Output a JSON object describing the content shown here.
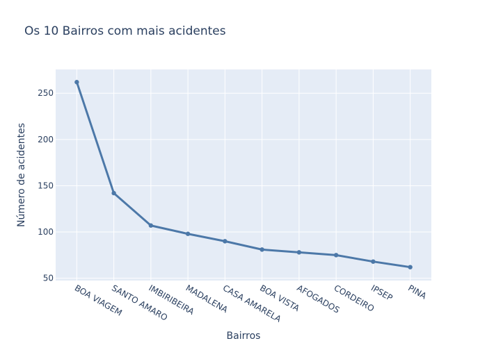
{
  "chart_data": {
    "type": "line",
    "title": "Os 10 Bairros com mais acidentes",
    "xlabel": "Bairros",
    "ylabel": "Número de acidentes",
    "categories": [
      "BOA VIAGEM",
      "SANTO AMARO",
      "IMBIRIBEIRA",
      "MADALENA",
      "CASA AMARELA",
      "BOA VISTA",
      "AFOGADOS",
      "CORDEIRO",
      "IPSEP",
      "PINA"
    ],
    "values": [
      262,
      142,
      107,
      98,
      90,
      81,
      78,
      75,
      68,
      62
    ],
    "yticks": [
      50,
      100,
      150,
      200,
      250
    ],
    "ylim": [
      47.5,
      275.7
    ],
    "grid": true,
    "mode": "lines+markers",
    "colors": {
      "line": "#4c78a8",
      "plot_bg": "#e5ecf6",
      "grid": "#ffffff",
      "text": "#2a3f5f"
    }
  }
}
